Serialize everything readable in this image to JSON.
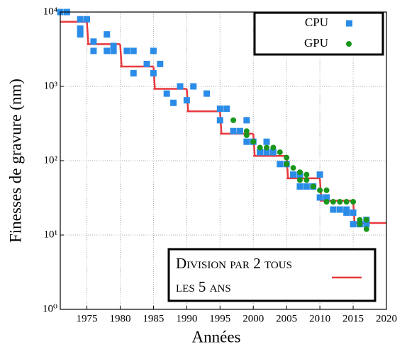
{
  "chart_data": {
    "type": "scatter",
    "xlabel": "Années",
    "ylabel": "Finesses de gravure (nm)",
    "xlim": [
      1971,
      2020
    ],
    "ylim": [
      1,
      10000
    ],
    "yscale": "log",
    "grid": true,
    "legend": "upper right",
    "xticks": [
      1975,
      1980,
      1985,
      1990,
      1995,
      2000,
      2005,
      2010,
      2015,
      2020
    ],
    "yticks": [
      {
        "value": 1,
        "label": "10⁰"
      },
      {
        "value": 10,
        "label": "10¹"
      },
      {
        "value": 100,
        "label": "10²"
      },
      {
        "value": 1000,
        "label": "10³"
      },
      {
        "value": 10000,
        "label": "10⁴"
      }
    ],
    "series": [
      {
        "name": "CPU",
        "color": "#2b8ce8",
        "marker": "square",
        "x": [
          1971,
          1972,
          1974,
          1974,
          1974,
          1975,
          1976,
          1976,
          1978,
          1978,
          1979,
          1979,
          1981,
          1982,
          1982,
          1984,
          1985,
          1985,
          1986,
          1987,
          1988,
          1989,
          1990,
          1991,
          1993,
          1995,
          1995,
          1996,
          1997,
          1998,
          1999,
          1999,
          2000,
          2001,
          2002,
          2002,
          2003,
          2004,
          2005,
          2006,
          2007,
          2007,
          2008,
          2009,
          2010,
          2010,
          2011,
          2012,
          2013,
          2014,
          2014,
          2015,
          2015,
          2016,
          2017,
          2017
        ],
        "values": [
          10000,
          10000,
          8000,
          6000,
          5000,
          8000,
          4000,
          3000,
          5000,
          3000,
          3500,
          3000,
          3000,
          3000,
          1500,
          2000,
          3000,
          1500,
          2000,
          800,
          600,
          1000,
          650,
          1000,
          800,
          500,
          350,
          500,
          250,
          250,
          350,
          180,
          180,
          130,
          180,
          130,
          130,
          90,
          90,
          65,
          65,
          45,
          45,
          45,
          65,
          32,
          32,
          22,
          22,
          22,
          20,
          20,
          14,
          14,
          16,
          14
        ]
      },
      {
        "name": "GPU",
        "color": "#1a961a",
        "marker": "circle",
        "x": [
          1997,
          1999,
          1999,
          2000,
          2001,
          2002,
          2003,
          2004,
          2005,
          2005,
          2006,
          2007,
          2007,
          2008,
          2008,
          2009,
          2010,
          2011,
          2011,
          2012,
          2013,
          2014,
          2015,
          2016,
          2016,
          2017,
          2017
        ],
        "values": [
          350,
          250,
          220,
          180,
          150,
          150,
          150,
          130,
          110,
          90,
          80,
          70,
          55,
          65,
          55,
          45,
          40,
          40,
          28,
          28,
          28,
          28,
          28,
          16,
          14,
          16,
          12
        ]
      },
      {
        "name": "Division par 2 tous les 5 ans",
        "type": "line",
        "step": "post",
        "color": "#e8383d",
        "x": [
          1971,
          1975,
          1980,
          1985,
          1990,
          1995,
          2000,
          2005,
          2010,
          2015,
          2020
        ],
        "values": [
          7400,
          3700,
          1850,
          925,
          462,
          231,
          116,
          58,
          29,
          14.5,
          14.5
        ]
      }
    ]
  }
}
